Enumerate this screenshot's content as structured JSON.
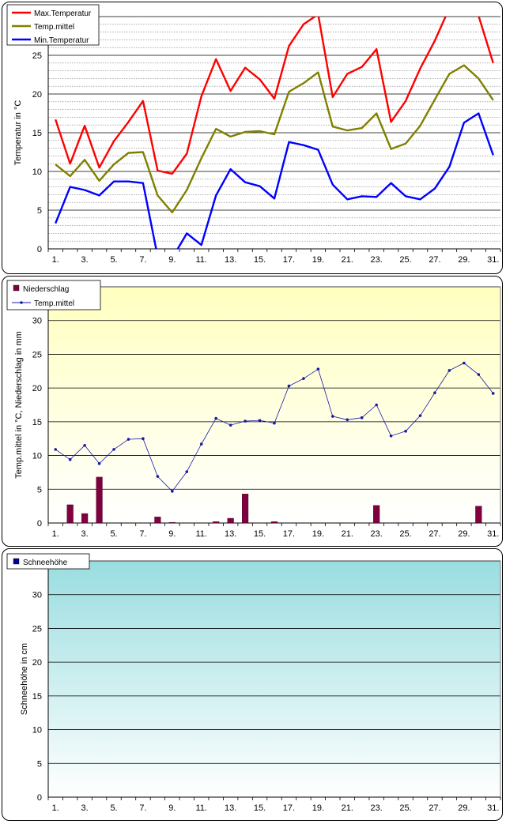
{
  "colors": {
    "max": "#ff0000",
    "mittel": "#808000",
    "min": "#0000ff",
    "precip": "#800040",
    "temp_line": "#1a1aa6",
    "snow": "#000099",
    "grid_major": "#000000",
    "grid_minor": "#808080"
  },
  "x_tick_labels": [
    "1.",
    "3.",
    "5.",
    "7.",
    "9.",
    "11.",
    "13.",
    "15.",
    "17.",
    "19.",
    "21.",
    "23.",
    "25.",
    "27.",
    "29.",
    "31."
  ],
  "chart_data": [
    {
      "type": "line",
      "ylabel": "Temperatur in °C",
      "ylim": [
        0,
        30
      ],
      "yticks": [
        0,
        5,
        10,
        15,
        20,
        25,
        30
      ],
      "grid": true,
      "legend": "top-left",
      "x": [
        1,
        2,
        3,
        4,
        5,
        6,
        7,
        8,
        9,
        10,
        11,
        12,
        13,
        14,
        15,
        16,
        17,
        18,
        19,
        20,
        21,
        22,
        23,
        24,
        25,
        26,
        27,
        28,
        29,
        30,
        31
      ],
      "series": [
        {
          "name": "Max.Temperatur",
          "color_key": "max",
          "values": [
            16.7,
            11.0,
            15.9,
            10.5,
            13.9,
            16.4,
            19.1,
            10.1,
            9.7,
            12.3,
            19.7,
            24.5,
            20.4,
            23.4,
            21.9,
            19.4,
            26.2,
            29.0,
            30.3,
            19.6,
            22.6,
            23.5,
            25.8,
            16.4,
            19.1,
            23.3,
            26.9,
            31.1,
            30.2,
            30.1,
            24.0
          ]
        },
        {
          "name": "Temp.mittel",
          "color_key": "mittel",
          "values": [
            10.9,
            9.4,
            11.5,
            8.8,
            10.9,
            12.4,
            12.5,
            6.9,
            4.7,
            7.6,
            11.7,
            15.5,
            14.5,
            15.1,
            15.2,
            14.8,
            20.3,
            21.4,
            22.8,
            15.8,
            15.3,
            15.6,
            17.5,
            12.9,
            13.6,
            15.9,
            19.3,
            22.6,
            23.7,
            22.0,
            19.2
          ]
        },
        {
          "name": "Min.Temperatur",
          "color_key": "min",
          "values": [
            3.3,
            8.0,
            7.6,
            6.9,
            8.7,
            8.7,
            8.5,
            -1.0,
            -1.2,
            2.0,
            0.5,
            6.9,
            10.3,
            8.6,
            8.1,
            6.5,
            13.8,
            13.4,
            12.8,
            8.3,
            6.4,
            6.8,
            6.7,
            8.5,
            6.8,
            6.4,
            7.8,
            10.6,
            16.3,
            17.5,
            12.1
          ]
        }
      ]
    },
    {
      "type": "bar",
      "ylabel": "Temp.mittel  in °C, Niederschlag in mm",
      "ylim": [
        0,
        35
      ],
      "yticks": [
        0,
        5,
        10,
        15,
        20,
        25,
        30
      ],
      "grid": true,
      "legend": "top-left",
      "x": [
        1,
        2,
        3,
        4,
        5,
        6,
        7,
        8,
        9,
        10,
        11,
        12,
        13,
        14,
        15,
        16,
        17,
        18,
        19,
        20,
        21,
        22,
        23,
        24,
        25,
        26,
        27,
        28,
        29,
        30,
        31
      ],
      "series": [
        {
          "name": "Niederschlag",
          "color_key": "precip",
          "kind": "bar",
          "values": [
            0,
            2.7,
            1.4,
            6.8,
            0,
            0,
            0,
            0.9,
            0.1,
            0,
            0,
            0.2,
            0.7,
            4.3,
            0,
            0.2,
            0,
            0,
            0,
            0,
            0,
            0,
            2.6,
            0,
            0,
            0,
            0,
            0,
            0,
            2.5,
            0
          ]
        },
        {
          "name": "Temp.mittel",
          "color_key": "temp_line",
          "kind": "line",
          "values": [
            10.9,
            9.4,
            11.5,
            8.8,
            10.9,
            12.4,
            12.5,
            6.9,
            4.7,
            7.6,
            11.7,
            15.5,
            14.5,
            15.1,
            15.2,
            14.8,
            20.3,
            21.4,
            22.8,
            15.8,
            15.3,
            15.6,
            17.5,
            12.9,
            13.6,
            15.9,
            19.3,
            22.6,
            23.7,
            22.0,
            19.2
          ]
        }
      ]
    },
    {
      "type": "bar",
      "ylabel": "Schneehöhe in cm",
      "ylim": [
        0,
        35
      ],
      "yticks": [
        0,
        5,
        10,
        15,
        20,
        25,
        30
      ],
      "grid": true,
      "legend": "top-left",
      "x": [
        1,
        2,
        3,
        4,
        5,
        6,
        7,
        8,
        9,
        10,
        11,
        12,
        13,
        14,
        15,
        16,
        17,
        18,
        19,
        20,
        21,
        22,
        23,
        24,
        25,
        26,
        27,
        28,
        29,
        30,
        31
      ],
      "series": [
        {
          "name": "Schneehöhe",
          "color_key": "snow",
          "kind": "bar",
          "values": [
            0,
            0,
            0,
            0,
            0,
            0,
            0,
            0,
            0,
            0,
            0,
            0,
            0,
            0,
            0,
            0,
            0,
            0,
            0,
            0,
            0,
            0,
            0,
            0,
            0,
            0,
            0,
            0,
            0,
            0,
            0
          ]
        }
      ]
    }
  ]
}
